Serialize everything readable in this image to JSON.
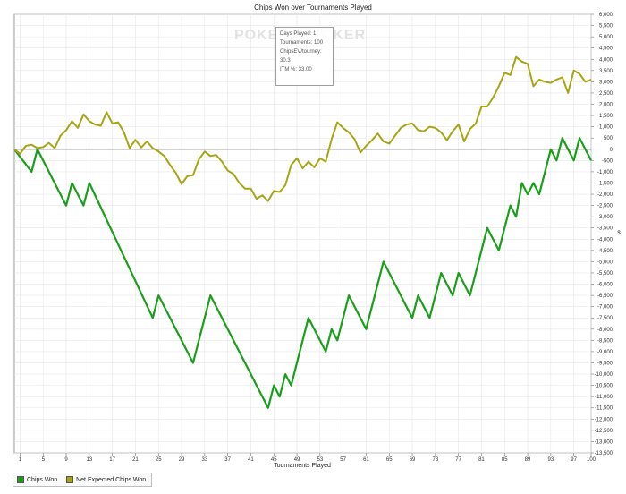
{
  "chart_data": {
    "type": "line",
    "title": "Chips Won over Tournaments Played",
    "xlabel": "Tournaments Played",
    "ylabel": "$",
    "xlim": [
      0,
      100
    ],
    "ylim": [
      -13500,
      6000
    ],
    "x_ticks": [
      "1",
      "5",
      "9",
      "13",
      "17",
      "21",
      "25",
      "29",
      "33",
      "37",
      "41",
      "45",
      "49",
      "53",
      "57",
      "61",
      "65",
      "69",
      "73",
      "77",
      "81",
      "85",
      "89",
      "93",
      "97",
      "100"
    ],
    "y_ticks": [
      "6,000",
      "5,500",
      "5,000",
      "4,500",
      "4,000",
      "3,500",
      "3,000",
      "2,500",
      "2,000",
      "1,500",
      "1,000",
      "500",
      "0",
      "-500",
      "-1,000",
      "-1,500",
      "-2,000",
      "-2,500",
      "-3,000",
      "-3,500",
      "-4,000",
      "-4,500",
      "-5,000",
      "-5,500",
      "-6,000",
      "-6,500",
      "-7,000",
      "-7,500",
      "-8,000",
      "-8,500",
      "-9,000",
      "-9,500",
      "-10,000",
      "-10,500",
      "-11,000",
      "-11,500",
      "-12,000",
      "-12,500",
      "-13,000",
      "-13,500"
    ],
    "grid": true,
    "legend_position": "bottom-left",
    "series": [
      {
        "name": "Chips Won",
        "color": "#1a9f1a",
        "points": [
          [
            0,
            0
          ],
          [
            3,
            -1000
          ],
          [
            4,
            0
          ],
          [
            9,
            -2500
          ],
          [
            10,
            -1500
          ],
          [
            12,
            -2500
          ],
          [
            13,
            -1500
          ],
          [
            24,
            -7500
          ],
          [
            25,
            -6500
          ],
          [
            31,
            -9500
          ],
          [
            34,
            -6500
          ],
          [
            44,
            -11500
          ],
          [
            45,
            -10500
          ],
          [
            46,
            -11000
          ],
          [
            47,
            -10000
          ],
          [
            48,
            -10500
          ],
          [
            51,
            -7500
          ],
          [
            54,
            -9000
          ],
          [
            55,
            -8000
          ],
          [
            56,
            -8500
          ],
          [
            58,
            -6500
          ],
          [
            61,
            -8000
          ],
          [
            64,
            -5000
          ],
          [
            69,
            -7500
          ],
          [
            70,
            -6500
          ],
          [
            72,
            -7500
          ],
          [
            74,
            -5500
          ],
          [
            76,
            -6500
          ],
          [
            77,
            -5500
          ],
          [
            79,
            -6500
          ],
          [
            82,
            -3500
          ],
          [
            84,
            -4500
          ],
          [
            86,
            -2500
          ],
          [
            87,
            -3000
          ],
          [
            88,
            -1500
          ],
          [
            89,
            -2000
          ],
          [
            90,
            -1500
          ],
          [
            91,
            -2000
          ],
          [
            93,
            0
          ],
          [
            94,
            -500
          ],
          [
            95,
            500
          ],
          [
            97,
            -500
          ],
          [
            98,
            500
          ],
          [
            100,
            -500
          ]
        ]
      },
      {
        "name": "Net Expected Chips Won",
        "color": "#a7a514",
        "points": [
          [
            0,
            0
          ],
          [
            1,
            -200
          ],
          [
            2,
            150
          ],
          [
            3,
            200
          ],
          [
            4,
            50
          ],
          [
            5,
            100
          ],
          [
            6,
            280
          ],
          [
            7,
            50
          ],
          [
            8,
            600
          ],
          [
            9,
            850
          ],
          [
            10,
            1250
          ],
          [
            11,
            950
          ],
          [
            12,
            1550
          ],
          [
            13,
            1250
          ],
          [
            14,
            1100
          ],
          [
            15,
            1050
          ],
          [
            16,
            1650
          ],
          [
            17,
            1150
          ],
          [
            18,
            1200
          ],
          [
            19,
            750
          ],
          [
            20,
            50
          ],
          [
            21,
            420
          ],
          [
            22,
            80
          ],
          [
            23,
            350
          ],
          [
            24,
            50
          ],
          [
            25,
            -100
          ],
          [
            26,
            -300
          ],
          [
            27,
            -700
          ],
          [
            28,
            -1050
          ],
          [
            29,
            -1550
          ],
          [
            30,
            -1200
          ],
          [
            31,
            -1150
          ],
          [
            32,
            -450
          ],
          [
            33,
            -100
          ],
          [
            34,
            -300
          ],
          [
            35,
            -250
          ],
          [
            36,
            -550
          ],
          [
            37,
            -950
          ],
          [
            38,
            -1100
          ],
          [
            39,
            -1500
          ],
          [
            40,
            -1750
          ],
          [
            41,
            -1750
          ],
          [
            42,
            -2200
          ],
          [
            43,
            -2050
          ],
          [
            44,
            -2300
          ],
          [
            45,
            -1850
          ],
          [
            46,
            -1900
          ],
          [
            47,
            -1600
          ],
          [
            48,
            -700
          ],
          [
            49,
            -400
          ],
          [
            50,
            -850
          ],
          [
            51,
            -550
          ],
          [
            52,
            -800
          ],
          [
            53,
            -400
          ],
          [
            54,
            -550
          ],
          [
            55,
            450
          ],
          [
            56,
            1200
          ],
          [
            57,
            950
          ],
          [
            58,
            750
          ],
          [
            59,
            450
          ],
          [
            60,
            -150
          ],
          [
            61,
            150
          ],
          [
            62,
            400
          ],
          [
            63,
            700
          ],
          [
            64,
            350
          ],
          [
            65,
            250
          ],
          [
            66,
            600
          ],
          [
            67,
            950
          ],
          [
            68,
            1100
          ],
          [
            69,
            1150
          ],
          [
            70,
            850
          ],
          [
            71,
            800
          ],
          [
            72,
            1000
          ],
          [
            73,
            950
          ],
          [
            74,
            750
          ],
          [
            75,
            400
          ],
          [
            76,
            800
          ],
          [
            77,
            1100
          ],
          [
            78,
            350
          ],
          [
            79,
            900
          ],
          [
            80,
            1150
          ],
          [
            81,
            1900
          ],
          [
            82,
            1900
          ],
          [
            83,
            2300
          ],
          [
            84,
            2800
          ],
          [
            85,
            3400
          ],
          [
            86,
            3300
          ],
          [
            87,
            4100
          ],
          [
            88,
            3900
          ],
          [
            89,
            3800
          ],
          [
            90,
            2800
          ],
          [
            91,
            3100
          ],
          [
            92,
            3000
          ],
          [
            93,
            2950
          ],
          [
            94,
            3100
          ],
          [
            95,
            3200
          ],
          [
            96,
            2500
          ],
          [
            97,
            3500
          ],
          [
            98,
            3350
          ],
          [
            99,
            3000
          ],
          [
            100,
            3100
          ]
        ]
      }
    ],
    "tooltip": {
      "line1": "Days Played: 1",
      "line2": "Tournaments: 100",
      "line3": "ChipsEV/tourney: 30.3",
      "line4": "ITM %: 33.00"
    },
    "watermark": "POKERTRACKER"
  }
}
